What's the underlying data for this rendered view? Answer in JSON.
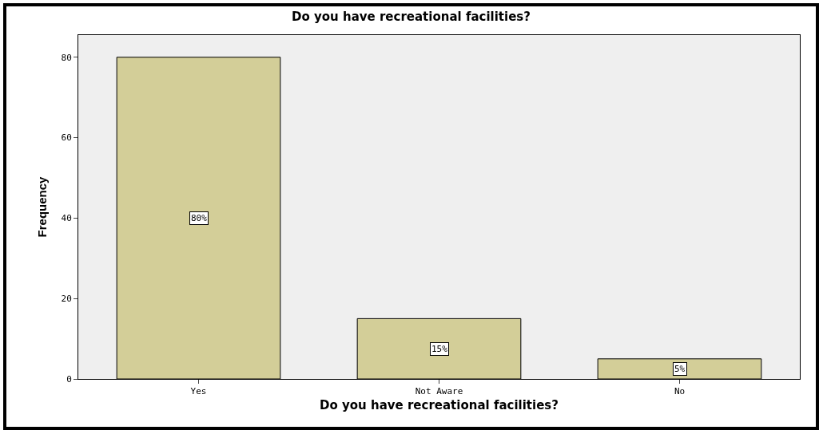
{
  "chart_data": {
    "type": "bar",
    "title": "Do you have recreational facilities?",
    "xlabel": "Do you have recreational facilities?",
    "ylabel": "Frequency",
    "categories": [
      "Yes",
      "Not Aware",
      "No"
    ],
    "values": [
      80,
      15,
      5
    ],
    "color": "#d3ce98",
    "value_labels": [
      "80%",
      "15%",
      "5%"
    ],
    "ylim": [
      0,
      85.5
    ],
    "yticks": [
      0,
      20,
      40,
      60,
      80
    ],
    "grid": false,
    "legend": false
  }
}
